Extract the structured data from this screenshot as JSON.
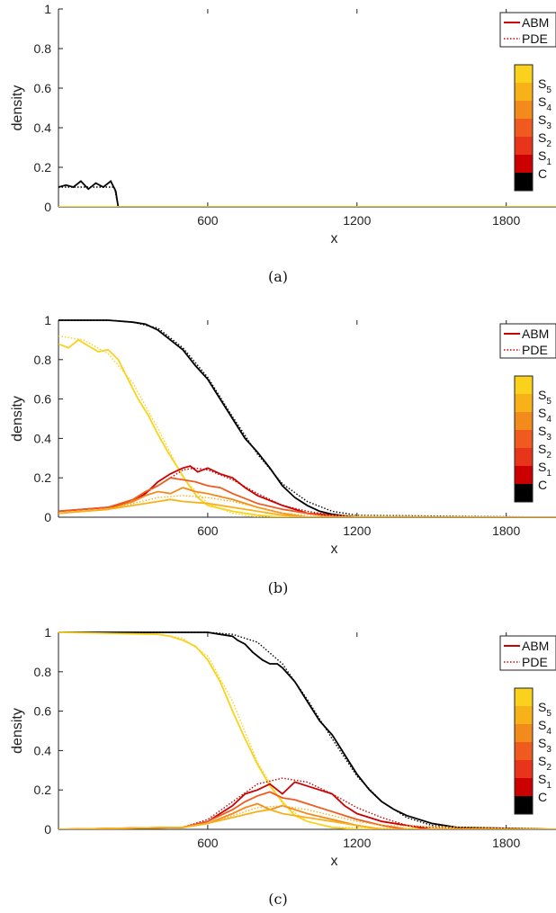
{
  "palette": {
    "C": "#000000",
    "S1": "#cc0000",
    "S2": "#e8351a",
    "S3": "#f05a1e",
    "S4": "#f38a1c",
    "S5": "#f7b21a",
    "S6": "#fad21e"
  },
  "colorbar_labels": [
    "S5",
    "S4",
    "S3",
    "S2",
    "S1",
    "C"
  ],
  "chart_data": [
    {
      "type": "line",
      "caption": "(a)",
      "xlabel": "x",
      "ylabel": "density",
      "xlim": [
        0,
        2000
      ],
      "ylim": [
        0,
        1
      ],
      "xticks": [
        "600",
        "1200",
        "1800"
      ],
      "yticks": [
        "0",
        "0.2",
        "0.4",
        "0.6",
        "0.8",
        "1"
      ],
      "legend": [
        "ABM",
        "PDE"
      ],
      "series": [
        {
          "key": "C",
          "style": "solid",
          "x": [
            0,
            30,
            60,
            90,
            120,
            150,
            180,
            210,
            230,
            240,
            2000
          ],
          "y": [
            0.1,
            0.11,
            0.1,
            0.13,
            0.09,
            0.12,
            0.1,
            0.13,
            0.08,
            0.0,
            0.0
          ]
        },
        {
          "key": "C",
          "style": "dotted",
          "x": [
            0,
            225,
            240,
            2000
          ],
          "y": [
            0.1,
            0.1,
            0.0,
            0.0
          ]
        },
        {
          "key": "S6",
          "style": "solid",
          "x": [
            0,
            2000
          ],
          "y": [
            0.0,
            0.0
          ]
        }
      ]
    },
    {
      "type": "line",
      "caption": "(b)",
      "xlabel": "x",
      "ylabel": "density",
      "xlim": [
        0,
        2000
      ],
      "ylim": [
        0,
        1
      ],
      "xticks": [
        "600",
        "1200",
        "1800"
      ],
      "yticks": [
        "0",
        "0.2",
        "0.4",
        "0.6",
        "0.8",
        "1"
      ],
      "legend": [
        "ABM",
        "PDE"
      ],
      "series": [
        {
          "key": "C",
          "style": "solid",
          "x": [
            0,
            200,
            300,
            350,
            400,
            450,
            500,
            550,
            600,
            650,
            700,
            750,
            800,
            850,
            900,
            950,
            1000,
            1050,
            1100,
            1200,
            2000
          ],
          "y": [
            1.0,
            1.0,
            0.99,
            0.98,
            0.95,
            0.9,
            0.85,
            0.77,
            0.7,
            0.6,
            0.5,
            0.4,
            0.33,
            0.25,
            0.16,
            0.1,
            0.06,
            0.03,
            0.015,
            0.0,
            0.0
          ]
        },
        {
          "key": "C",
          "style": "dotted",
          "x": [
            0,
            200,
            300,
            400,
            500,
            600,
            700,
            800,
            900,
            1000,
            1100,
            1200,
            2000
          ],
          "y": [
            1.0,
            1.0,
            0.99,
            0.96,
            0.86,
            0.71,
            0.51,
            0.32,
            0.17,
            0.08,
            0.03,
            0.01,
            0.0
          ]
        },
        {
          "key": "S6",
          "style": "solid",
          "x": [
            0,
            40,
            80,
            120,
            160,
            200,
            240,
            280,
            320,
            360,
            400,
            440,
            480,
            520,
            560,
            600,
            700,
            800,
            900,
            1000,
            2000
          ],
          "y": [
            0.88,
            0.86,
            0.9,
            0.87,
            0.84,
            0.85,
            0.8,
            0.7,
            0.6,
            0.52,
            0.42,
            0.33,
            0.25,
            0.17,
            0.1,
            0.06,
            0.03,
            0.01,
            0.0,
            0.0,
            0.0
          ]
        },
        {
          "key": "S6",
          "style": "dotted",
          "x": [
            0,
            100,
            200,
            300,
            400,
            500,
            600,
            700,
            800,
            2000
          ],
          "y": [
            0.92,
            0.9,
            0.83,
            0.68,
            0.45,
            0.2,
            0.07,
            0.02,
            0.0,
            0.0
          ]
        },
        {
          "key": "S1",
          "style": "solid",
          "x": [
            0,
            200,
            300,
            350,
            400,
            450,
            500,
            530,
            560,
            600,
            650,
            700,
            750,
            800,
            900,
            1000,
            1100,
            1200,
            2000
          ],
          "y": [
            0.03,
            0.05,
            0.08,
            0.12,
            0.18,
            0.22,
            0.25,
            0.26,
            0.23,
            0.25,
            0.22,
            0.2,
            0.15,
            0.11,
            0.06,
            0.02,
            0.01,
            0.0,
            0.0
          ]
        },
        {
          "key": "S1",
          "style": "dotted",
          "x": [
            0,
            200,
            300,
            400,
            500,
            550,
            600,
            700,
            800,
            900,
            1000,
            1100,
            1200,
            2000
          ],
          "y": [
            0.03,
            0.05,
            0.09,
            0.16,
            0.24,
            0.25,
            0.24,
            0.19,
            0.12,
            0.06,
            0.03,
            0.01,
            0.0,
            0.0
          ]
        },
        {
          "key": "S3",
          "style": "solid",
          "x": [
            0,
            200,
            300,
            350,
            400,
            450,
            500,
            550,
            600,
            650,
            700,
            800,
            900,
            1000,
            1100,
            2000
          ],
          "y": [
            0.03,
            0.05,
            0.09,
            0.13,
            0.16,
            0.2,
            0.19,
            0.18,
            0.16,
            0.15,
            0.12,
            0.07,
            0.04,
            0.02,
            0.0,
            0.0
          ]
        },
        {
          "key": "S4",
          "style": "solid",
          "x": [
            0,
            200,
            300,
            350,
            400,
            450,
            500,
            550,
            600,
            700,
            800,
            900,
            1000,
            2000
          ],
          "y": [
            0.02,
            0.04,
            0.08,
            0.11,
            0.13,
            0.12,
            0.15,
            0.13,
            0.12,
            0.09,
            0.05,
            0.02,
            0.0,
            0.0
          ]
        },
        {
          "key": "S5",
          "style": "solid",
          "x": [
            0,
            200,
            300,
            400,
            450,
            500,
            600,
            700,
            800,
            900,
            1000,
            2000
          ],
          "y": [
            0.02,
            0.04,
            0.06,
            0.08,
            0.09,
            0.08,
            0.07,
            0.05,
            0.03,
            0.01,
            0.0,
            0.0
          ]
        },
        {
          "key": "S5",
          "style": "dotted",
          "x": [
            0,
            200,
            300,
            400,
            500,
            600,
            700,
            800,
            900,
            1000,
            2000
          ],
          "y": [
            0.02,
            0.04,
            0.07,
            0.1,
            0.11,
            0.1,
            0.08,
            0.05,
            0.02,
            0.01,
            0.0
          ]
        }
      ]
    },
    {
      "type": "line",
      "caption": "(c)",
      "xlabel": "x",
      "ylabel": "density",
      "xlim": [
        0,
        2000
      ],
      "ylim": [
        0,
        1
      ],
      "xticks": [
        "600",
        "1200",
        "1800"
      ],
      "yticks": [
        "0",
        "0.2",
        "0.4",
        "0.6",
        "0.8",
        "1"
      ],
      "legend": [
        "ABM",
        "PDE"
      ],
      "series": [
        {
          "key": "C",
          "style": "solid",
          "x": [
            0,
            600,
            650,
            700,
            720,
            750,
            780,
            820,
            850,
            880,
            900,
            950,
            1000,
            1050,
            1100,
            1150,
            1200,
            1250,
            1300,
            1350,
            1400,
            1500,
            1600,
            2000
          ],
          "y": [
            1.0,
            1.0,
            0.99,
            0.98,
            0.96,
            0.94,
            0.9,
            0.86,
            0.84,
            0.84,
            0.82,
            0.75,
            0.65,
            0.55,
            0.48,
            0.38,
            0.28,
            0.2,
            0.14,
            0.1,
            0.07,
            0.03,
            0.01,
            0.0
          ]
        },
        {
          "key": "C",
          "style": "dotted",
          "x": [
            0,
            600,
            700,
            800,
            900,
            1000,
            1100,
            1200,
            1300,
            1400,
            1500,
            1600,
            2000
          ],
          "y": [
            1.0,
            1.0,
            0.99,
            0.95,
            0.84,
            0.66,
            0.46,
            0.27,
            0.14,
            0.06,
            0.02,
            0.01,
            0.0
          ]
        },
        {
          "key": "S6",
          "style": "solid",
          "x": [
            0,
            400,
            450,
            500,
            550,
            600,
            650,
            700,
            750,
            800,
            850,
            900,
            950,
            1000,
            1100,
            1200,
            2000
          ],
          "y": [
            1.0,
            0.99,
            0.98,
            0.96,
            0.93,
            0.86,
            0.75,
            0.6,
            0.46,
            0.33,
            0.22,
            0.14,
            0.07,
            0.04,
            0.01,
            0.0,
            0.0
          ]
        },
        {
          "key": "S6",
          "style": "dotted",
          "x": [
            0,
            400,
            500,
            600,
            700,
            800,
            900,
            1000,
            1100,
            2000
          ],
          "y": [
            1.0,
            0.99,
            0.97,
            0.88,
            0.65,
            0.34,
            0.13,
            0.04,
            0.01,
            0.0
          ]
        },
        {
          "key": "S1",
          "style": "solid",
          "x": [
            0,
            500,
            600,
            700,
            750,
            800,
            850,
            900,
            950,
            1000,
            1050,
            1100,
            1150,
            1200,
            1300,
            1400,
            1500,
            2000
          ],
          "y": [
            0.0,
            0.01,
            0.04,
            0.12,
            0.18,
            0.2,
            0.23,
            0.18,
            0.24,
            0.22,
            0.2,
            0.18,
            0.12,
            0.08,
            0.04,
            0.02,
            0.0,
            0.0
          ]
        },
        {
          "key": "S1",
          "style": "dotted",
          "x": [
            0,
            500,
            600,
            700,
            800,
            900,
            1000,
            1100,
            1200,
            1300,
            1400,
            1500,
            2000
          ],
          "y": [
            0.0,
            0.01,
            0.05,
            0.14,
            0.23,
            0.26,
            0.24,
            0.18,
            0.11,
            0.06,
            0.02,
            0.01,
            0.0
          ]
        },
        {
          "key": "S3",
          "style": "solid",
          "x": [
            0,
            500,
            600,
            700,
            750,
            800,
            850,
            900,
            950,
            1000,
            1100,
            1200,
            1300,
            1400,
            2000
          ],
          "y": [
            0.0,
            0.01,
            0.04,
            0.1,
            0.14,
            0.17,
            0.19,
            0.16,
            0.15,
            0.13,
            0.09,
            0.05,
            0.02,
            0.0,
            0.0
          ]
        },
        {
          "key": "S4",
          "style": "solid",
          "x": [
            0,
            500,
            600,
            700,
            750,
            800,
            850,
            900,
            1000,
            1100,
            1200,
            1300,
            2000
          ],
          "y": [
            0.0,
            0.01,
            0.03,
            0.08,
            0.11,
            0.13,
            0.1,
            0.12,
            0.08,
            0.05,
            0.02,
            0.0,
            0.0
          ]
        },
        {
          "key": "S5",
          "style": "solid",
          "x": [
            0,
            500,
            600,
            700,
            800,
            850,
            900,
            1000,
            1100,
            1200,
            1300,
            2000
          ],
          "y": [
            0.0,
            0.01,
            0.03,
            0.06,
            0.09,
            0.1,
            0.08,
            0.06,
            0.04,
            0.02,
            0.0,
            0.0
          ]
        },
        {
          "key": "S5",
          "style": "dotted",
          "x": [
            0,
            500,
            600,
            700,
            800,
            900,
            1000,
            1100,
            1200,
            1300,
            2000
          ],
          "y": [
            0.0,
            0.01,
            0.03,
            0.07,
            0.11,
            0.12,
            0.1,
            0.07,
            0.04,
            0.02,
            0.0
          ]
        }
      ]
    }
  ]
}
